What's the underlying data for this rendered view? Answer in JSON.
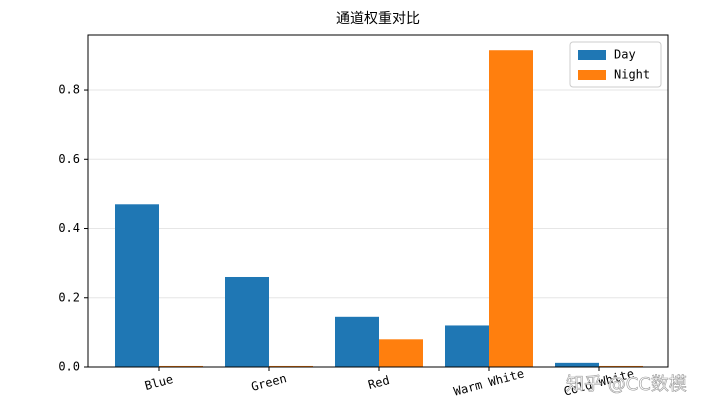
{
  "chart_data": {
    "type": "bar",
    "title": "通道权重对比",
    "categories": [
      "Blue",
      "Green",
      "Red",
      "Warm White",
      "Cold White"
    ],
    "series": [
      {
        "name": "Day",
        "color": "#1f77b4",
        "values": [
          0.47,
          0.26,
          0.145,
          0.12,
          0.012
        ]
      },
      {
        "name": "Night",
        "color": "#ff7f0e",
        "values": [
          0.003,
          0.003,
          0.08,
          0.915,
          0.003
        ]
      }
    ],
    "ylim": [
      0,
      0.959
    ],
    "yticks": [
      0.0,
      0.2,
      0.4,
      0.6,
      0.8
    ],
    "grid": true,
    "legend": "upper right",
    "watermark": "知乎 @CC数模"
  }
}
